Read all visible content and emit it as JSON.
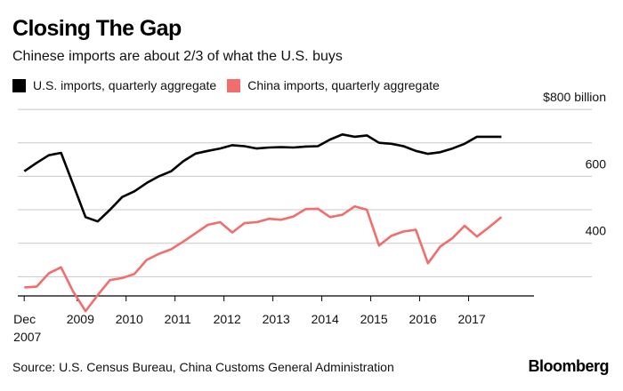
{
  "header": {
    "title": "Closing The Gap",
    "subtitle": "Chinese imports are about 2/3 of what the U.S. buys"
  },
  "footer": {
    "source": "Source: U.S. Census Bureau, China Customs General Administration",
    "brand": "Bloomberg"
  },
  "colors": {
    "us": "#000000",
    "china": "#f26d6d",
    "grid": "#c8c8c8"
  },
  "chart_data": {
    "type": "line",
    "title": "Closing The Gap",
    "subtitle": "Chinese imports are about 2/3 of what the U.S. buys",
    "x_unit": "year",
    "x_tick_labels": [
      {
        "x": 2007.917,
        "label": "Dec",
        "label2": "2007"
      },
      {
        "x": 2009,
        "label": "2009"
      },
      {
        "x": 2010,
        "label": "2010"
      },
      {
        "x": 2011,
        "label": "2011"
      },
      {
        "x": 2012,
        "label": "2012"
      },
      {
        "x": 2013,
        "label": "2013"
      },
      {
        "x": 2014,
        "label": "2014"
      },
      {
        "x": 2015,
        "label": "2015"
      },
      {
        "x": 2016,
        "label": "2016"
      },
      {
        "x": 2017,
        "label": "2017"
      }
    ],
    "xlim": [
      2007.75,
      2018.3
    ],
    "ylim": [
      200,
      840
    ],
    "y_gridlines": [
      300,
      400,
      500,
      600,
      700,
      800
    ],
    "y_tick_labels": [
      {
        "y": 800,
        "label": "$800 billion"
      },
      {
        "y": 600,
        "label": "600"
      },
      {
        "y": 400,
        "label": "400"
      }
    ],
    "grid": true,
    "legend_position": "top-left",
    "series": [
      {
        "name": "U.S. imports, quarterly aggregate",
        "color": "#000000",
        "points": [
          [
            2007.92,
            615
          ],
          [
            2008.17,
            640
          ],
          [
            2008.42,
            663
          ],
          [
            2008.67,
            670
          ],
          [
            2008.92,
            575
          ],
          [
            2009.17,
            478
          ],
          [
            2009.42,
            465
          ],
          [
            2009.67,
            500
          ],
          [
            2009.92,
            538
          ],
          [
            2010.17,
            555
          ],
          [
            2010.42,
            580
          ],
          [
            2010.67,
            600
          ],
          [
            2010.92,
            615
          ],
          [
            2011.17,
            645
          ],
          [
            2011.42,
            668
          ],
          [
            2011.67,
            676
          ],
          [
            2011.92,
            683
          ],
          [
            2012.17,
            693
          ],
          [
            2012.42,
            690
          ],
          [
            2012.67,
            683
          ],
          [
            2012.92,
            686
          ],
          [
            2013.17,
            687
          ],
          [
            2013.42,
            686
          ],
          [
            2013.67,
            689
          ],
          [
            2013.92,
            690
          ],
          [
            2014.17,
            710
          ],
          [
            2014.42,
            725
          ],
          [
            2014.67,
            718
          ],
          [
            2014.92,
            722
          ],
          [
            2015.17,
            700
          ],
          [
            2015.42,
            697
          ],
          [
            2015.67,
            690
          ],
          [
            2015.92,
            676
          ],
          [
            2016.17,
            667
          ],
          [
            2016.42,
            672
          ],
          [
            2016.67,
            683
          ],
          [
            2016.92,
            697
          ],
          [
            2017.17,
            718
          ],
          [
            2017.42,
            718
          ],
          [
            2017.67,
            718
          ]
        ]
      },
      {
        "name": "China imports, quarterly aggregate",
        "color": "#f26d6d",
        "points": [
          [
            2007.92,
            268
          ],
          [
            2008.17,
            270
          ],
          [
            2008.42,
            310
          ],
          [
            2008.67,
            328
          ],
          [
            2008.92,
            255
          ],
          [
            2009.17,
            197
          ],
          [
            2009.42,
            245
          ],
          [
            2009.67,
            290
          ],
          [
            2009.92,
            296
          ],
          [
            2010.17,
            308
          ],
          [
            2010.42,
            350
          ],
          [
            2010.67,
            368
          ],
          [
            2010.92,
            382
          ],
          [
            2011.17,
            405
          ],
          [
            2011.42,
            430
          ],
          [
            2011.67,
            455
          ],
          [
            2011.92,
            463
          ],
          [
            2012.17,
            432
          ],
          [
            2012.42,
            460
          ],
          [
            2012.67,
            463
          ],
          [
            2012.92,
            473
          ],
          [
            2013.17,
            470
          ],
          [
            2013.42,
            480
          ],
          [
            2013.67,
            502
          ],
          [
            2013.92,
            503
          ],
          [
            2014.17,
            478
          ],
          [
            2014.42,
            485
          ],
          [
            2014.67,
            510
          ],
          [
            2014.92,
            500
          ],
          [
            2015.17,
            393
          ],
          [
            2015.42,
            422
          ],
          [
            2015.67,
            435
          ],
          [
            2015.92,
            440
          ],
          [
            2016.17,
            340
          ],
          [
            2016.42,
            390
          ],
          [
            2016.67,
            415
          ],
          [
            2016.92,
            452
          ],
          [
            2017.17,
            420
          ],
          [
            2017.42,
            448
          ],
          [
            2017.67,
            478
          ]
        ]
      }
    ]
  }
}
